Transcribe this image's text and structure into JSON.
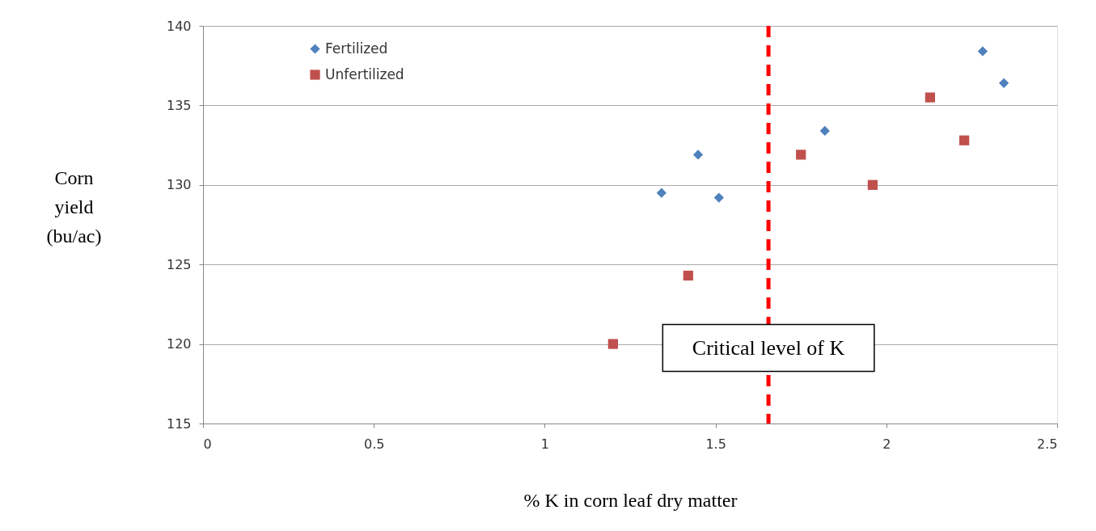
{
  "chart_data": {
    "type": "scatter",
    "xlabel": "% K in corn leaf dry matter",
    "ylabel": "Corn\nyield\n(bu/ac)",
    "xlim": [
      0,
      2.5
    ],
    "xticks": [
      0,
      0.5,
      1,
      1.5,
      2,
      2.5
    ],
    "ylim": [
      115,
      140
    ],
    "yticks": [
      115,
      120,
      125,
      130,
      135,
      140
    ],
    "grid": "y",
    "legend": "top left",
    "series": [
      {
        "name": "Fertilized",
        "color": "#4f81bd",
        "marker": "diamond",
        "x": [
          1.342,
          1.449,
          1.51,
          1.82,
          2.282,
          2.344
        ],
        "values": [
          129.5,
          131.9,
          129.2,
          133.4,
          138.4,
          136.4
        ]
      },
      {
        "name": "Unfertilized",
        "color": "#c0504d",
        "marker": "square",
        "x": [
          1.2,
          1.42,
          1.75,
          1.96,
          2.128,
          2.228
        ],
        "values": [
          120.0,
          124.3,
          131.9,
          130.0,
          135.5,
          132.8
        ]
      }
    ],
    "ref_lines": [
      {
        "axis": "x",
        "value": 1.655,
        "label": "Critical level of K",
        "color": "#ff0000",
        "line_style": "dashed"
      }
    ]
  }
}
